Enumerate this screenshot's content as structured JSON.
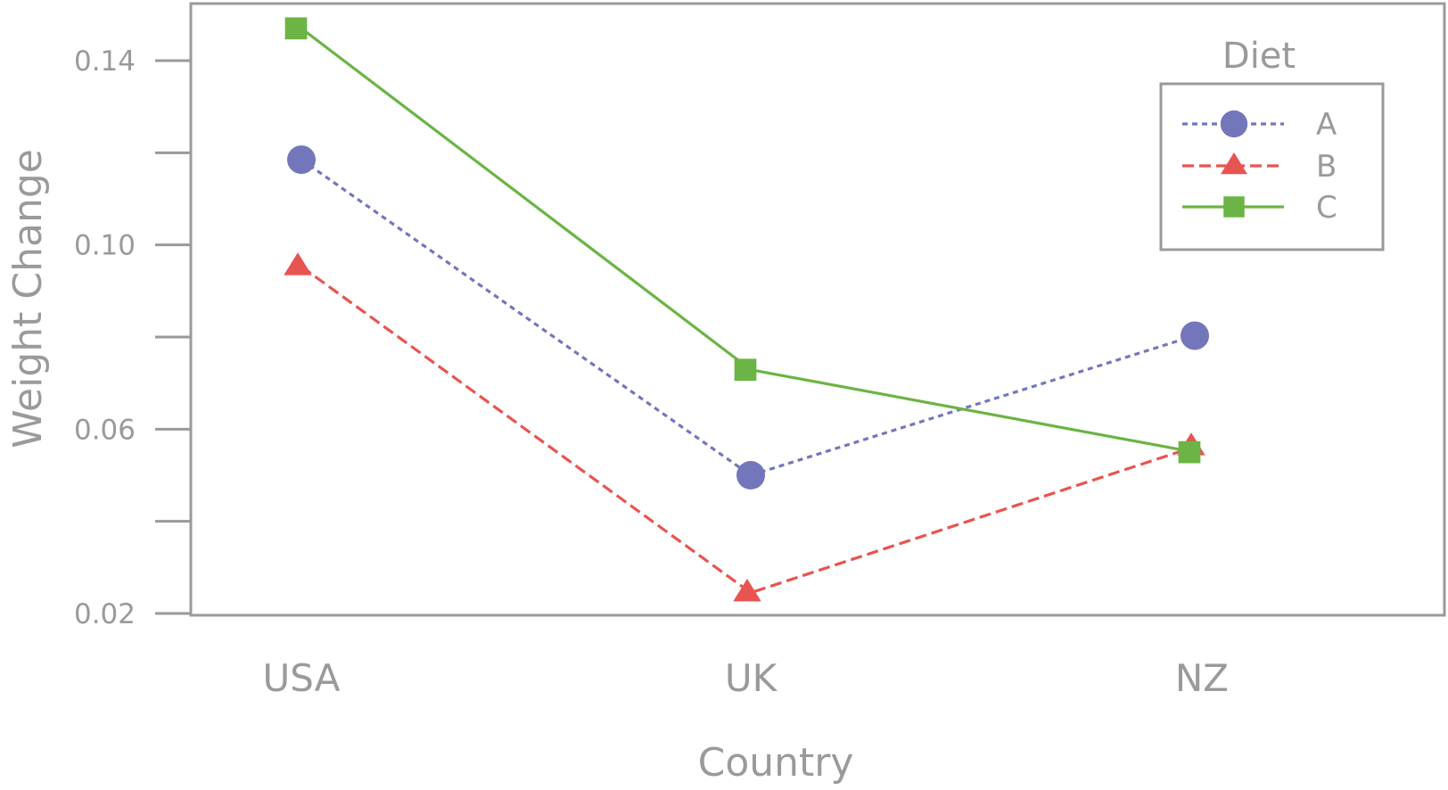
{
  "chart_data": {
    "type": "line",
    "title": "",
    "xlabel": "Country",
    "ylabel": "Weight Change",
    "categories": [
      "USA",
      "UK",
      "NZ"
    ],
    "ylim": [
      0.02,
      0.1525
    ],
    "yticks": [
      0.02,
      0.04,
      0.06,
      0.08,
      0.1,
      0.12,
      0.14
    ],
    "ytick_labels": [
      "0.02",
      "",
      "0.06",
      "",
      "0.10",
      "",
      "0.14"
    ],
    "grid": false,
    "legend": {
      "title": "Diet",
      "position": "top-right"
    },
    "series": [
      {
        "name": "A",
        "values": [
          0.1185,
          0.05,
          0.0803
        ],
        "color": "#7476bb",
        "marker": "circle",
        "line_style": "dotted"
      },
      {
        "name": "B",
        "values": [
          0.0953,
          0.0245,
          0.0562
        ],
        "color": "#e85450",
        "marker": "triangle",
        "line_style": "dashed"
      },
      {
        "name": "C",
        "values": [
          0.147,
          0.0729,
          0.055
        ],
        "color": "#6bb445",
        "marker": "square",
        "line_style": "solid"
      }
    ]
  }
}
